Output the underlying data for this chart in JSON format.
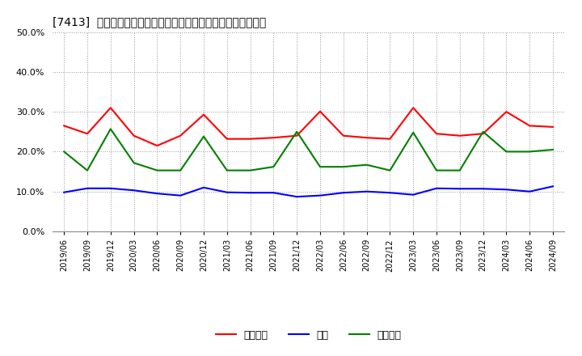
{
  "title": "[7413]  売上債権、在庫、買入債務の総資産に対する比率の推移",
  "dates": [
    "2019/06",
    "2019/09",
    "2019/12",
    "2020/03",
    "2020/06",
    "2020/09",
    "2020/12",
    "2021/03",
    "2021/06",
    "2021/09",
    "2021/12",
    "2022/03",
    "2022/06",
    "2022/09",
    "2022/12",
    "2023/03",
    "2023/06",
    "2023/09",
    "2023/12",
    "2024/03",
    "2024/06",
    "2024/09"
  ],
  "urikake": [
    0.265,
    0.245,
    0.31,
    0.24,
    0.215,
    0.24,
    0.293,
    0.232,
    0.232,
    0.235,
    0.24,
    0.301,
    0.24,
    0.235,
    0.232,
    0.31,
    0.245,
    0.24,
    0.245,
    0.3,
    0.265,
    0.262
  ],
  "zaiko": [
    0.098,
    0.108,
    0.108,
    0.103,
    0.095,
    0.09,
    0.11,
    0.098,
    0.097,
    0.097,
    0.087,
    0.09,
    0.097,
    0.1,
    0.097,
    0.092,
    0.108,
    0.107,
    0.107,
    0.105,
    0.1,
    0.113
  ],
  "kainyu": [
    0.2,
    0.153,
    0.257,
    0.172,
    0.153,
    0.153,
    0.238,
    0.153,
    0.153,
    0.162,
    0.25,
    0.162,
    0.162,
    0.167,
    0.153,
    0.248,
    0.153,
    0.153,
    0.25,
    0.2,
    0.2,
    0.205
  ],
  "urikake_color": "#ff0000",
  "zaiko_color": "#0000ff",
  "kainyu_color": "#008000",
  "ylim": [
    0.0,
    0.5
  ],
  "yticks": [
    0.0,
    0.1,
    0.2,
    0.3,
    0.4,
    0.5
  ],
  "background_color": "#ffffff",
  "grid_color": "#999999",
  "legend_labels": [
    "売上債権",
    "在庫",
    "買入債務"
  ]
}
